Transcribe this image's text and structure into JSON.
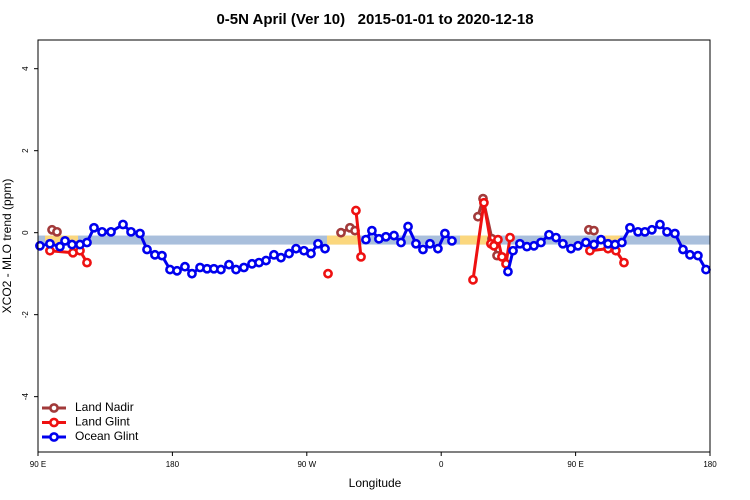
{
  "chart_data": {
    "type": "line",
    "title": "0-5N April (Ver 10)   2015-01-01 to 2020-12-18",
    "x_label": "Longitude",
    "y_label": "XCO2 - MLO trend (ppm)",
    "xlim": [
      90,
      540
    ],
    "ylim": [
      -5.35,
      4.7
    ],
    "xticks": [
      {
        "value": 90,
        "label": "90 E"
      },
      180,
      {
        "value": 270,
        "label": "90 W"
      },
      {
        "value": 360,
        "label": "0"
      },
      {
        "value": 450,
        "label": "90 E"
      },
      {
        "value": 540,
        "label": "180"
      }
    ],
    "yticks": [
      -4,
      -2,
      0,
      2,
      4
    ],
    "legend": "bottom-left",
    "bands": [
      {
        "color": "#a9bfdc",
        "x": [
          90,
          540
        ],
        "y": [
          -0.29,
          -0.07
        ]
      },
      {
        "color": "#fbd77e",
        "x": [
          94.7,
          116.8
        ],
        "y": [
          -0.29,
          -0.07
        ]
      },
      {
        "color": "#fbd77e",
        "x": [
          283.5,
          304.3
        ],
        "y": [
          -0.29,
          -0.07
        ]
      },
      {
        "color": "#fbd77e",
        "x": [
          372.6,
          392.7
        ],
        "y": [
          -0.29,
          -0.07
        ]
      },
      {
        "color": "#fbd77e",
        "x": [
          465,
          479.7
        ],
        "y": [
          -0.29,
          -0.07
        ]
      }
    ],
    "series": [
      {
        "name": "Land Nadir",
        "color": "#a23a3a",
        "x": [
          99.4,
          102.7,
          null,
          292.9,
          298.9,
          302.3,
          null,
          384.6,
          388.0,
          394.0,
          397.4,
          null,
          458.9,
          462.3
        ],
        "values": [
          0.07,
          0.02,
          null,
          0.0,
          0.12,
          0.05,
          null,
          0.39,
          0.83,
          -0.15,
          -0.56,
          null,
          0.07,
          0.05
        ]
      },
      {
        "name": "Land Glint",
        "color": "#ee1111",
        "x": [
          98.0,
          113.4,
          118.1,
          122.8,
          null,
          284.2,
          null,
          302.9,
          306.3,
          null,
          381.3,
          388.6,
          393.3,
          395.3,
          398.0,
          400.7,
          403.4,
          406.1,
          null,
          459.6,
          471.7,
          477.0,
          482.4
        ],
        "values": [
          -0.44,
          -0.49,
          -0.44,
          -0.73,
          null,
          -1.0,
          null,
          0.54,
          -0.59,
          null,
          -1.15,
          0.73,
          -0.27,
          -0.32,
          -0.17,
          -0.59,
          -0.76,
          -0.12,
          null,
          -0.44,
          -0.39,
          -0.44,
          -0.73
        ]
      },
      {
        "name": "Ocean Glint",
        "color": "#0000ee",
        "x": [
          91.3,
          98.0,
          104.7,
          108.1,
          112.8,
          118.1,
          122.8,
          127.5,
          132.9,
          138.9,
          146.9,
          152.3,
          158.3,
          163.0,
          168.3,
          173.0,
          178.4,
          183.1,
          188.4,
          193.1,
          198.5,
          203.2,
          207.8,
          212.5,
          217.9,
          222.6,
          227.9,
          233.3,
          238.0,
          242.7,
          248.0,
          252.7,
          258.1,
          262.8,
          268.1,
          272.8,
          277.5,
          282.2,
          null,
          309.6,
          313.6,
          318.3,
          323.0,
          328.4,
          333.1,
          337.8,
          343.1,
          347.8,
          352.5,
          357.8,
          362.5,
          367.2,
          null,
          404.7,
          408.1,
          412.7,
          417.4,
          422.1,
          426.8,
          432.2,
          436.9,
          441.5,
          446.9,
          451.6,
          456.9,
          462.3,
          467.0,
          471.7,
          476.4,
          481.0,
          486.4,
          491.8,
          496.4,
          501.1,
          506.5,
          511.2,
          516.5,
          521.9,
          526.6,
          531.9,
          537.3
        ],
        "values": [
          -0.32,
          -0.27,
          -0.34,
          -0.2,
          -0.29,
          -0.29,
          -0.24,
          0.12,
          0.02,
          0.02,
          0.2,
          0.02,
          -0.02,
          -0.41,
          -0.54,
          -0.56,
          -0.9,
          -0.93,
          -0.83,
          -1.0,
          -0.85,
          -0.88,
          -0.88,
          -0.9,
          -0.78,
          -0.9,
          -0.85,
          -0.76,
          -0.73,
          -0.68,
          -0.54,
          -0.61,
          -0.51,
          -0.39,
          -0.44,
          -0.51,
          -0.27,
          -0.39,
          null,
          -0.17,
          0.05,
          -0.15,
          -0.1,
          -0.07,
          -0.24,
          0.15,
          -0.27,
          -0.41,
          -0.27,
          -0.39,
          -0.02,
          -0.2,
          null,
          -0.95,
          -0.44,
          -0.27,
          -0.34,
          -0.32,
          -0.24,
          -0.05,
          -0.12,
          -0.27,
          -0.39,
          -0.32,
          -0.24,
          -0.29,
          -0.17,
          -0.27,
          -0.29,
          -0.24,
          0.12,
          0.02,
          0.02,
          0.07,
          0.2,
          0.02,
          -0.02,
          -0.41,
          -0.54,
          -0.56,
          -0.9
        ]
      }
    ]
  }
}
